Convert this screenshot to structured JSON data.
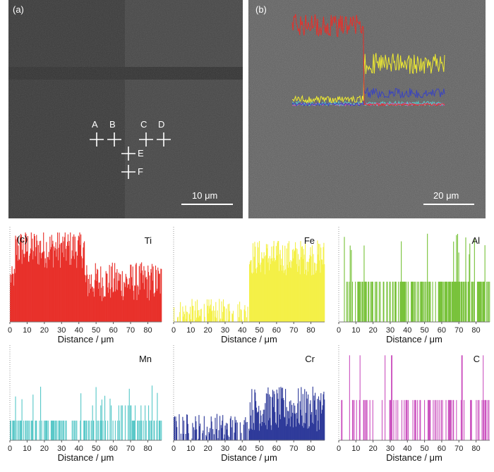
{
  "figure": {
    "panel_a": {
      "label": "(a)",
      "scale_bar": "10 μm",
      "points": [
        {
          "name": "A",
          "text": "A"
        },
        {
          "name": "B",
          "text": "B"
        },
        {
          "name": "C",
          "text": "C"
        },
        {
          "name": "D",
          "text": "D"
        },
        {
          "name": "E",
          "text": "E"
        },
        {
          "name": "F",
          "text": "F"
        }
      ]
    },
    "panel_b": {
      "label": "(b)",
      "scale_bar": "20 μm"
    },
    "panel_c": {
      "label": "(c)"
    }
  },
  "chart_data": [
    {
      "type": "bar",
      "element": "Ti",
      "color": "#e8302a",
      "xlabel": "Distance / μm",
      "xlim": [
        0,
        88
      ],
      "xticks": [
        "0",
        "10",
        "20",
        "30",
        "40",
        "50",
        "60",
        "70",
        "80"
      ],
      "profile": {
        "base_low": 0.82,
        "base_high": 0.45,
        "step_at": 43,
        "noise": 0.22,
        "sparse": 0
      },
      "step_at_um": 43
    },
    {
      "type": "bar",
      "element": "Fe",
      "color": "#f4f046",
      "xlabel": "Distance / μm",
      "xlim": [
        0,
        88
      ],
      "xticks": [
        "0",
        "10",
        "20",
        "30",
        "40",
        "50",
        "60",
        "70",
        "80"
      ],
      "profile": {
        "base_low": 0.06,
        "base_high": 0.72,
        "step_at": 44,
        "noise": 0.2,
        "sparse": 0
      },
      "step_at_um": 44
    },
    {
      "type": "bar",
      "element": "Al",
      "color": "#78c23a",
      "xlabel": "Distance / μm",
      "xlim": [
        0,
        88
      ],
      "xticks": [
        "0",
        "10",
        "20",
        "30",
        "40",
        "50",
        "60",
        "70",
        "80"
      ],
      "profile": {
        "base_low": 0.4,
        "base_high": 0.4,
        "step_at": 999,
        "noise": 0.0,
        "sparse": 1
      }
    },
    {
      "type": "bar",
      "element": "Mn",
      "color": "#58c8c8",
      "xlabel": "Distance / μm",
      "xlim": [
        0,
        88
      ],
      "xticks": [
        "0",
        "10",
        "20",
        "30",
        "40",
        "50",
        "60",
        "70",
        "80"
      ],
      "profile": {
        "base_low": 0.22,
        "base_high": 0.3,
        "step_at": 44,
        "noise": 0.0,
        "sparse": 2
      }
    },
    {
      "type": "bar",
      "element": "Cr",
      "color": "#2e3a9a",
      "xlabel": "Distance / μm",
      "xlim": [
        0,
        88
      ],
      "xticks": [
        "0",
        "10",
        "20",
        "30",
        "40",
        "50",
        "60",
        "70",
        "80"
      ],
      "profile": {
        "base_low": 0.06,
        "base_high": 0.35,
        "step_at": 44,
        "noise": 0.25,
        "sparse": 0
      },
      "step_at_um": 44
    },
    {
      "type": "bar",
      "element": "C",
      "color": "#cc55c0",
      "xlabel": "Distance / μm",
      "xlim": [
        0,
        88
      ],
      "xticks": [
        "0",
        "10",
        "20",
        "30",
        "40",
        "50",
        "60",
        "70",
        "80"
      ],
      "profile": {
        "base_low": 0.45,
        "base_high": 0.45,
        "step_at": 999,
        "noise": 0.0,
        "sparse": 3
      }
    }
  ]
}
